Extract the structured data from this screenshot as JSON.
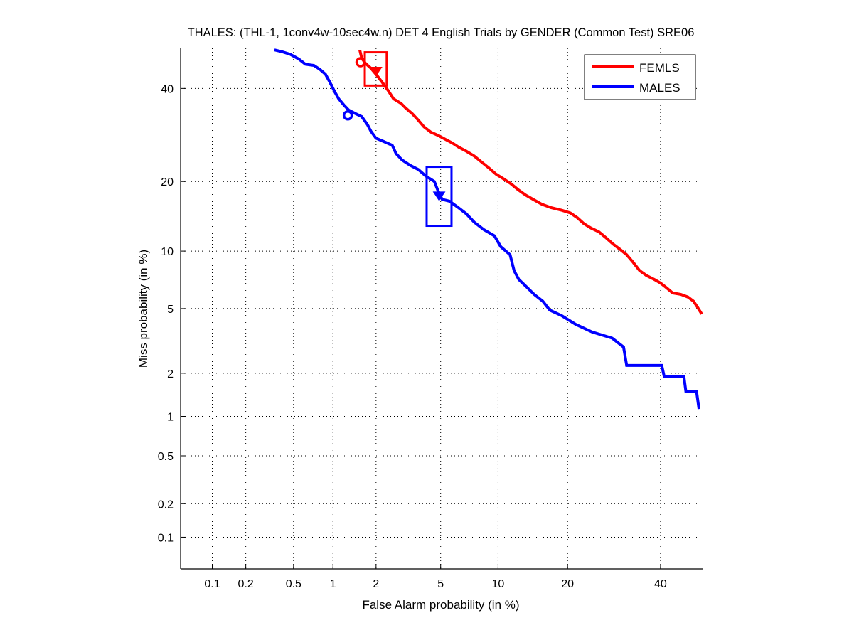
{
  "chart_data": {
    "type": "line",
    "title": "THALES: (THL-1, 1conv4w-10sec4w.n) DET 4 English Trials by GENDER (Common Test) SRE06",
    "xlabel": "False Alarm probability (in %)",
    "ylabel": "Miss probability (in %)",
    "xscale": "normal-deviate",
    "yscale": "normal-deviate",
    "xlim": [
      0.05,
      50.5
    ],
    "ylim": [
      0.05,
      50
    ],
    "xticks": [
      0.1,
      0.2,
      0.5,
      1,
      2,
      5,
      10,
      20,
      40
    ],
    "xtick_labels": [
      "0.1",
      "0.2",
      "0.5",
      "1",
      "2",
      "5",
      "10",
      "20",
      "40"
    ],
    "yticks": [
      0.1,
      0.2,
      0.5,
      1,
      2,
      5,
      10,
      20,
      40
    ],
    "ytick_labels": [
      "0.1",
      "0.2",
      "0.5",
      "1",
      "2",
      "5",
      "10",
      "20",
      "40"
    ],
    "grid": true,
    "legend_position": "top-right",
    "series": [
      {
        "name": "FEMLS",
        "color": "#ff0000",
        "points": [
          [
            1.55,
            49.6
          ],
          [
            1.6,
            47.5
          ],
          [
            1.7,
            46.2
          ],
          [
            1.85,
            45.0
          ],
          [
            2.0,
            43.5
          ],
          [
            2.2,
            41.5
          ],
          [
            2.4,
            39.5
          ],
          [
            2.6,
            37.5
          ],
          [
            2.9,
            36.4
          ],
          [
            3.1,
            35.3
          ],
          [
            3.4,
            34.0
          ],
          [
            3.7,
            32.5
          ],
          [
            4.0,
            31.0
          ],
          [
            4.4,
            29.8
          ],
          [
            4.9,
            29.0
          ],
          [
            5.3,
            28.3
          ],
          [
            5.8,
            27.5
          ],
          [
            6.3,
            26.6
          ],
          [
            6.9,
            25.8
          ],
          [
            7.6,
            24.8
          ],
          [
            8.3,
            23.6
          ],
          [
            9.0,
            22.5
          ],
          [
            9.8,
            21.3
          ],
          [
            10.6,
            20.5
          ],
          [
            11.5,
            19.6
          ],
          [
            12.4,
            18.6
          ],
          [
            13.4,
            17.7
          ],
          [
            14.6,
            16.9
          ],
          [
            15.8,
            16.2
          ],
          [
            17.2,
            15.7
          ],
          [
            19.0,
            15.3
          ],
          [
            20.5,
            14.9
          ],
          [
            21.8,
            14.2
          ],
          [
            23.0,
            13.4
          ],
          [
            24.4,
            12.8
          ],
          [
            26.0,
            12.3
          ],
          [
            27.6,
            11.5
          ],
          [
            29.0,
            10.8
          ],
          [
            30.5,
            10.2
          ],
          [
            32.0,
            9.6
          ],
          [
            33.5,
            8.8
          ],
          [
            35.0,
            8.0
          ],
          [
            36.6,
            7.55
          ],
          [
            38.5,
            7.2
          ],
          [
            40.0,
            6.9
          ],
          [
            41.5,
            6.5
          ],
          [
            43.0,
            6.1
          ],
          [
            45.0,
            6.0
          ],
          [
            46.8,
            5.8
          ],
          [
            48.2,
            5.5
          ],
          [
            49.2,
            5.1
          ],
          [
            50.3,
            4.65
          ]
        ]
      },
      {
        "name": "MALES",
        "color": "#0000ff",
        "points": [
          [
            0.35,
            49.6
          ],
          [
            0.4,
            49.2
          ],
          [
            0.47,
            48.5
          ],
          [
            0.55,
            47.3
          ],
          [
            0.62,
            46.0
          ],
          [
            0.72,
            45.7
          ],
          [
            0.8,
            44.7
          ],
          [
            0.88,
            43.5
          ],
          [
            0.95,
            41.5
          ],
          [
            1.03,
            39.2
          ],
          [
            1.1,
            37.5
          ],
          [
            1.2,
            36.0
          ],
          [
            1.3,
            34.8
          ],
          [
            1.45,
            34.0
          ],
          [
            1.6,
            33.3
          ],
          [
            1.75,
            31.5
          ],
          [
            1.85,
            30.0
          ],
          [
            2.0,
            28.5
          ],
          [
            2.25,
            27.8
          ],
          [
            2.55,
            27.0
          ],
          [
            2.7,
            25.3
          ],
          [
            2.95,
            24.0
          ],
          [
            3.3,
            23.0
          ],
          [
            3.7,
            22.2
          ],
          [
            4.1,
            21.0
          ],
          [
            4.6,
            20.0
          ],
          [
            4.8,
            18.6
          ],
          [
            5.1,
            17.0
          ],
          [
            5.6,
            16.7
          ],
          [
            6.2,
            15.8
          ],
          [
            6.9,
            14.8
          ],
          [
            7.6,
            13.6
          ],
          [
            8.5,
            12.6
          ],
          [
            9.6,
            11.8
          ],
          [
            10.3,
            10.5
          ],
          [
            11.4,
            9.6
          ],
          [
            11.9,
            8.0
          ],
          [
            12.5,
            7.2
          ],
          [
            13.5,
            6.6
          ],
          [
            14.6,
            6.0
          ],
          [
            15.9,
            5.5
          ],
          [
            17.0,
            4.9
          ],
          [
            19.0,
            4.55
          ],
          [
            21.5,
            4.05
          ],
          [
            24.6,
            3.65
          ],
          [
            28.8,
            3.35
          ],
          [
            31.3,
            2.95
          ],
          [
            32.0,
            2.25
          ],
          [
            40.3,
            2.25
          ],
          [
            40.9,
            1.9
          ],
          [
            45.8,
            1.9
          ],
          [
            46.3,
            1.5
          ],
          [
            49.0,
            1.5
          ],
          [
            49.6,
            1.13
          ]
        ],
        "act_marker": [
          4.9,
          17.5
        ],
        "min_marker": [
          1.28,
          33.6
        ],
        "ci_box": {
          "fa": [
            4.15,
            5.75
          ],
          "miss": [
            13.1,
            22.7
          ]
        }
      }
    ],
    "markers": {
      "FEMLS": {
        "act_marker": [
          2.0,
          44.2
        ],
        "min_marker": [
          1.57,
          46.5
        ],
        "ci_box": {
          "fa": [
            1.68,
            2.35
          ],
          "miss": [
            40.7,
            49.0
          ]
        }
      }
    }
  }
}
